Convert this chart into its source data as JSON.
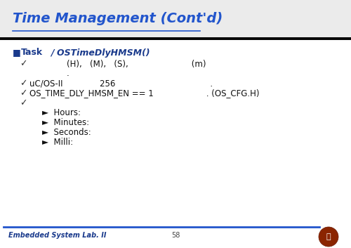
{
  "title": "Time Management (Cont'd)",
  "title_color": "#2255CC",
  "title_fontsize": 14,
  "slide_bg": "#FFFFFF",
  "footer_left": "Embedded System Lab. II",
  "footer_center": "58",
  "header_bg": "#EFEFEF",
  "black_line_y": 0.845,
  "task_bullet_color": "#1a3a8c",
  "check_color": "#333333",
  "body_color": "#111111",
  "footer_color": "#1a3a8c",
  "footer_line_color": "#2255CC",
  "sub_bullet_char": "►",
  "check_char": "✓",
  "square_char": "■"
}
